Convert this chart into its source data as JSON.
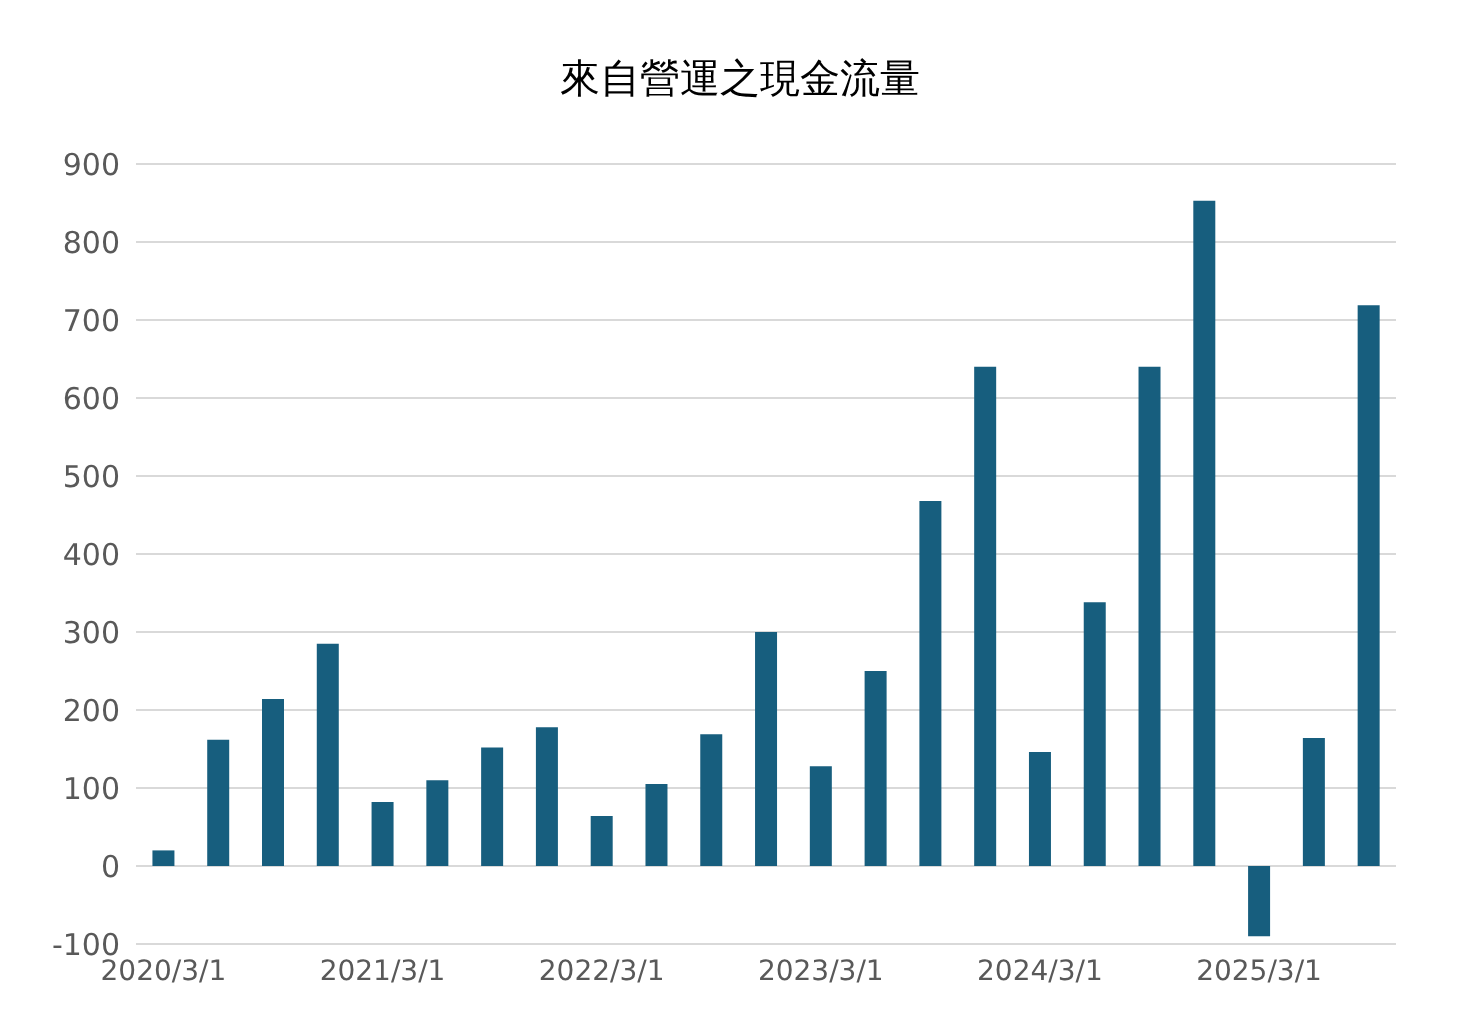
{
  "chart_data": {
    "type": "bar",
    "title": "來自營運之現金流量",
    "categories": [
      "2020/3/1",
      null,
      null,
      null,
      "2021/3/1",
      null,
      null,
      null,
      "2022/3/1",
      null,
      null,
      null,
      "2023/3/1",
      null,
      null,
      null,
      "2024/3/1",
      null,
      null,
      null,
      "2025/3/1",
      null,
      null
    ],
    "values": [
      20,
      162,
      214,
      285,
      82,
      110,
      152,
      178,
      64,
      105,
      169,
      300,
      128,
      250,
      468,
      640,
      146,
      338,
      640,
      853,
      -90,
      164,
      719
    ],
    "color": "#175e7e",
    "ylim": [
      -100,
      900
    ],
    "yticks": [
      -100,
      0,
      100,
      200,
      300,
      400,
      500,
      600,
      700,
      800,
      900
    ],
    "grid": "y"
  }
}
